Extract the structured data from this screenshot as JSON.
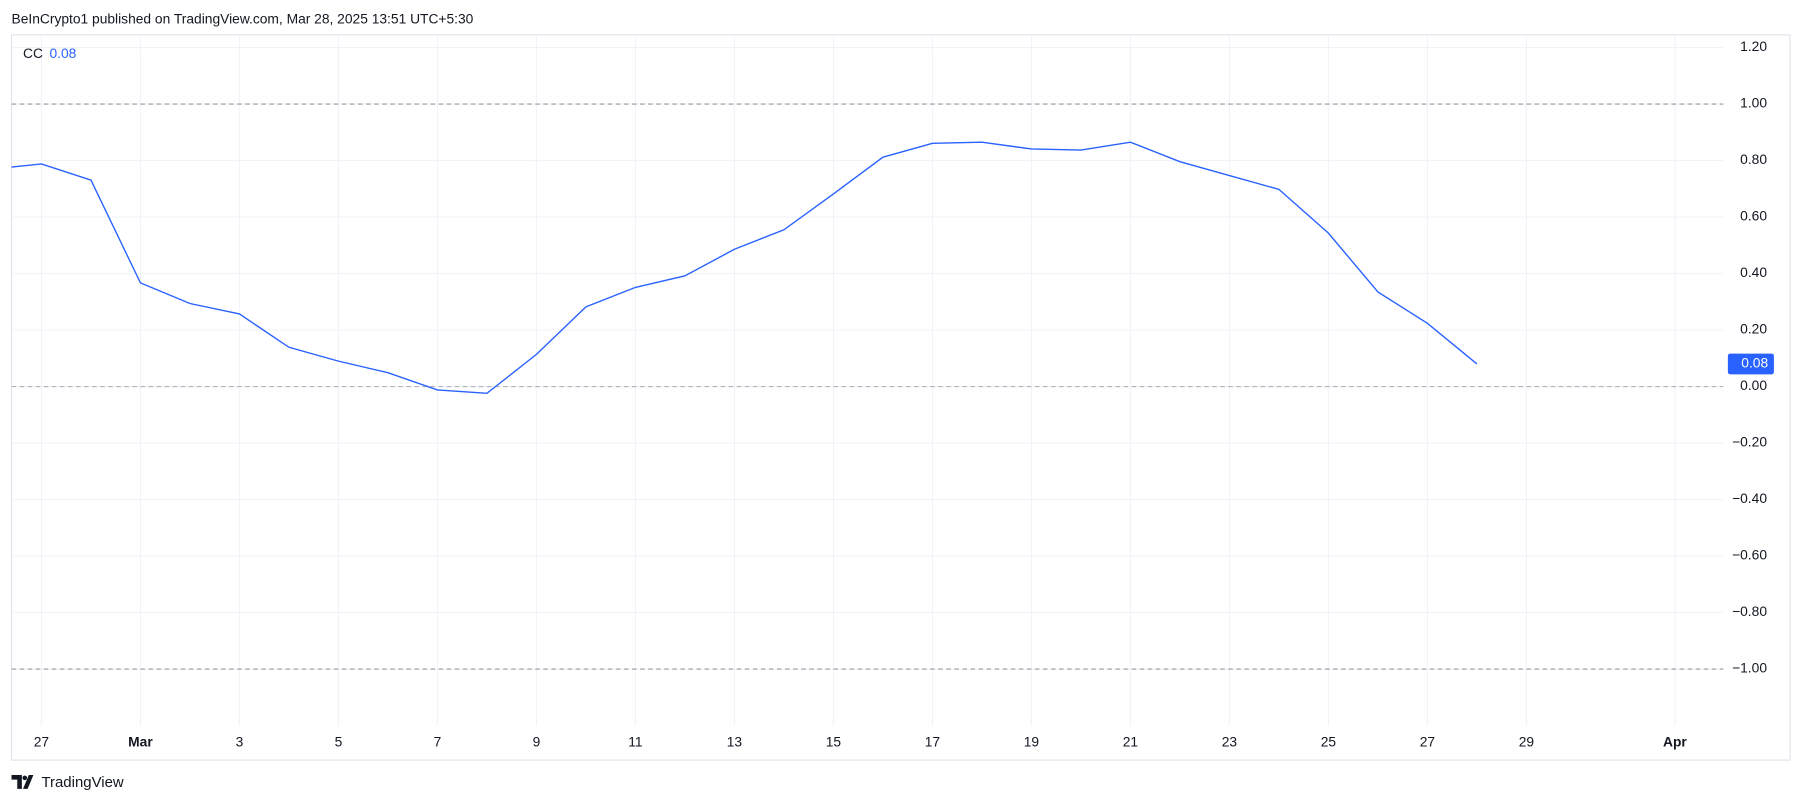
{
  "header": {
    "text": "BeInCrypto1 published on TradingView.com, Mar 28, 2025 13:51 UTC+5:30"
  },
  "chart_data": {
    "type": "line",
    "series": [
      {
        "name": "CC",
        "color": "#2962ff",
        "values": [
          0.77,
          0.788,
          0.731,
          0.367,
          0.294,
          0.257,
          0.139,
          0.09,
          0.049,
          -0.012,
          -0.024,
          0.114,
          0.282,
          0.351,
          0.392,
          0.486,
          0.555,
          0.682,
          0.812,
          0.861,
          0.865,
          0.841,
          0.837,
          0.865,
          0.796,
          0.747,
          0.698,
          0.543,
          0.335,
          0.224,
          0.08,
          null,
          null,
          null,
          null,
          null
        ]
      }
    ],
    "categories": [
      null,
      "27",
      null,
      "Mar",
      null,
      "3",
      null,
      "5",
      null,
      "7",
      null,
      "9",
      null,
      "11",
      null,
      "13",
      null,
      "15",
      null,
      "17",
      null,
      "19",
      null,
      "21",
      null,
      "23",
      null,
      "25",
      null,
      "27",
      null,
      "29",
      null,
      null,
      "Apr",
      null
    ],
    "legend_value": "0.08",
    "price_label": "0.08",
    "reference_lines": [
      1,
      0,
      -1
    ],
    "ylim": [
      -1.2,
      1.245
    ],
    "yticks": [
      {
        "value": 1.2,
        "label": "1.20"
      },
      {
        "value": 1,
        "label": "1.00"
      },
      {
        "value": 0.8,
        "label": "0.80"
      },
      {
        "value": 0.6,
        "label": "0.60"
      },
      {
        "value": 0.4,
        "label": "0.40"
      },
      {
        "value": 0.2,
        "label": "0.20"
      },
      {
        "value": 0,
        "label": "0.00"
      },
      {
        "value": -0.2,
        "label": "−0.20"
      },
      {
        "value": -0.4,
        "label": "−0.40"
      },
      {
        "value": -0.6,
        "label": "−0.60"
      },
      {
        "value": -0.8,
        "label": "−0.80"
      },
      {
        "value": -1,
        "label": "−1.00"
      }
    ],
    "grid": true
  },
  "footer": {
    "brand": "TradingView"
  }
}
